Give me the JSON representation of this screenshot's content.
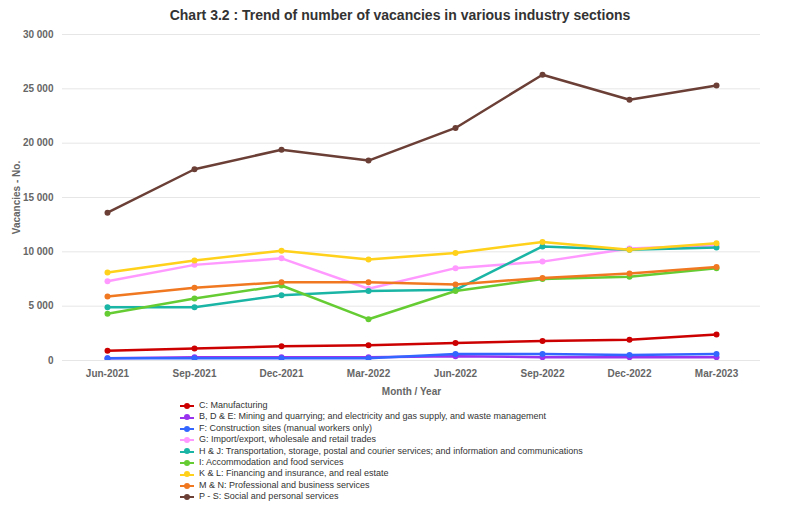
{
  "chart_data": {
    "type": "line",
    "title": "Chart 3.2 : Trend of number of vacancies in various industry sections",
    "x_label": "Month / Year",
    "y_label": "Vacancies - No.",
    "categories": [
      "Jun-2021",
      "Sep-2021",
      "Dec-2021",
      "Mar-2022",
      "Jun-2022",
      "Sep-2022",
      "Dec-2022",
      "Mar-2023"
    ],
    "series": [
      {
        "name": "C: Manufacturing",
        "color": "#cc0000",
        "values": [
          900,
          1100,
          1300,
          1400,
          1600,
          1800,
          1900,
          2400
        ]
      },
      {
        "name": "B, D & E: Mining and quarrying; and electricity and gas supply, and waste management",
        "color": "#9933ee",
        "values": [
          200,
          300,
          300,
          300,
          400,
          300,
          300,
          300
        ]
      },
      {
        "name": "F: Construction sites (manual workers only)",
        "color": "#3366ff",
        "values": [
          200,
          200,
          200,
          200,
          600,
          600,
          500,
          600
        ]
      },
      {
        "name": "G: Import/export, wholesale and retail trades",
        "color": "#ff99ff",
        "values": [
          7300,
          8800,
          9400,
          6600,
          8500,
          9100,
          10300,
          10600
        ]
      },
      {
        "name": "H & J: Transportation, storage, postal and courier services; and information and communications",
        "color": "#1ab5a5",
        "values": [
          4900,
          4900,
          6000,
          6400,
          6500,
          10500,
          10200,
          10400
        ]
      },
      {
        "name": "I: Accommodation and food services",
        "color": "#66cc33",
        "values": [
          4300,
          5700,
          6900,
          3800,
          6400,
          7500,
          7700,
          8500
        ]
      },
      {
        "name": "K & L: Financing and insurance, and real estate",
        "color": "#ffd11a",
        "values": [
          8100,
          9200,
          10100,
          9300,
          9900,
          10900,
          10200,
          10800
        ]
      },
      {
        "name": "M & N: Professional and business services",
        "color": "#f07820",
        "values": [
          5900,
          6700,
          7200,
          7200,
          7000,
          7600,
          8000,
          8600
        ]
      },
      {
        "name": "P - S: Social and personal services",
        "color": "#6b3f36",
        "values": [
          13600,
          17600,
          19400,
          18400,
          21400,
          26300,
          24000,
          25300
        ]
      }
    ],
    "ylim": [
      0,
      30000
    ],
    "yticks": [
      0,
      {
        "value": 5000,
        "label": "5 000"
      },
      {
        "value": 10000,
        "label": "10 000"
      },
      {
        "value": 15000,
        "label": "15 000"
      },
      {
        "value": 20000,
        "label": "20 000"
      },
      {
        "value": 25000,
        "label": "25 000"
      },
      {
        "value": 30000,
        "label": "30 000"
      }
    ],
    "grid": true,
    "legend": "bottom",
    "marker": "circle"
  }
}
